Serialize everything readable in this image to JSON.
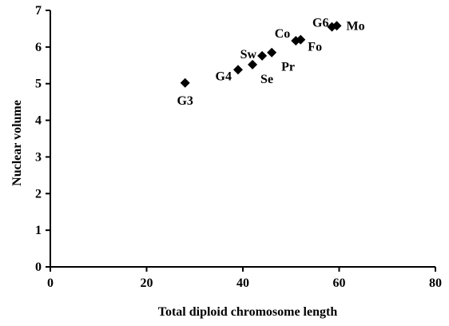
{
  "chart_data": {
    "type": "scatter",
    "title": "",
    "xlabel": "Total diploid chromosome length",
    "ylabel": "Nuclear volume",
    "xlim": [
      0,
      80
    ],
    "ylim": [
      0,
      7
    ],
    "xticks": [
      0,
      20,
      40,
      60,
      80
    ],
    "yticks": [
      0,
      1,
      2,
      3,
      4,
      5,
      6,
      7
    ],
    "grid": false,
    "legend": "none",
    "marker": "diamond",
    "marker_color": "#000000",
    "points": [
      {
        "label": "G3",
        "x": 28,
        "y": 5.02
      },
      {
        "label": "G4",
        "x": 39,
        "y": 5.38
      },
      {
        "label": "Se",
        "x": 42,
        "y": 5.52
      },
      {
        "label": "Sw",
        "x": 44,
        "y": 5.76
      },
      {
        "label": "Pr",
        "x": 46,
        "y": 5.85
      },
      {
        "label": "Co",
        "x": 51,
        "y": 6.17
      },
      {
        "label": "Fo",
        "x": 52,
        "y": 6.2
      },
      {
        "label": "G6",
        "x": 58.5,
        "y": 6.55
      },
      {
        "label": "Mo",
        "x": 59.5,
        "y": 6.58
      }
    ]
  }
}
